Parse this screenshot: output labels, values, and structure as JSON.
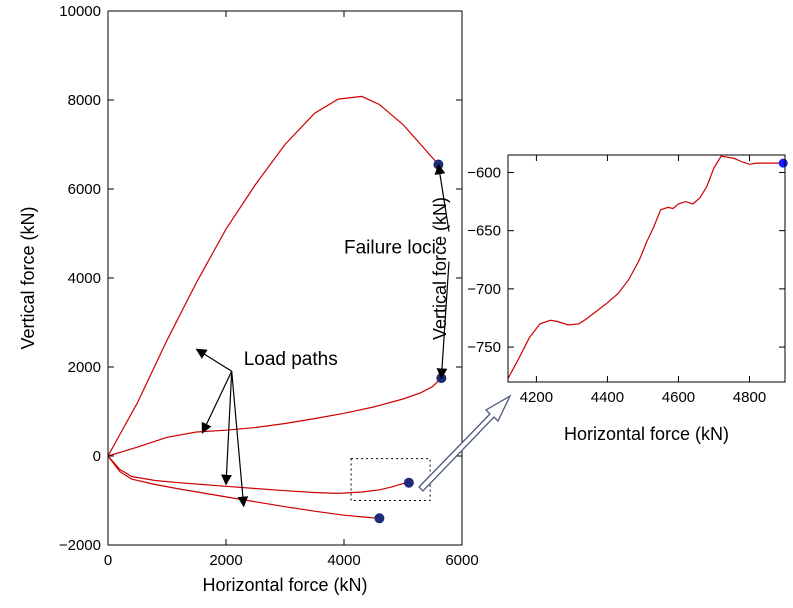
{
  "colors": {
    "line": "#cc0000",
    "marker_main": "#1f2a7a",
    "marker_zoom": "#1a1aff",
    "axis": "#000000"
  },
  "chart_data": [
    {
      "type": "line",
      "xlabel": "Horizontal force (kN)",
      "ylabel": "Vertical force (kN)",
      "xlim": [
        0,
        6000
      ],
      "ylim": [
        -2000,
        10000
      ],
      "xticks": [
        0,
        2000,
        4000,
        6000
      ],
      "yticks": [
        -2000,
        0,
        2000,
        4000,
        6000,
        8000,
        10000
      ],
      "x_tick_labels": [
        "0",
        "2000",
        "4000",
        "6000"
      ],
      "y_tick_labels": [
        "−2000",
        "0",
        "2000",
        "4000",
        "6000",
        "8000",
        "10000"
      ],
      "grid": false,
      "series": [
        {
          "x": [
            0,
            500,
            1000,
            1500,
            2000,
            2500,
            3000,
            3500,
            3900,
            4300,
            4600,
            5000,
            5300,
            5600
          ],
          "y": [
            0,
            1200,
            2600,
            3900,
            5100,
            6100,
            7000,
            7700,
            8020,
            8080,
            7900,
            7450,
            7000,
            6550
          ]
        },
        {
          "x": [
            0,
            500,
            1000,
            1500,
            2000,
            2500,
            3000,
            3500,
            4000,
            4500,
            5000,
            5300,
            5500,
            5650
          ],
          "y": [
            0,
            200,
            420,
            540,
            580,
            640,
            730,
            840,
            960,
            1100,
            1280,
            1420,
            1560,
            1750
          ]
        },
        {
          "x": [
            0,
            200,
            400,
            800,
            1200,
            1600,
            2000,
            2500,
            3000,
            3500,
            3900,
            4300,
            4600,
            4800,
            5000,
            5100
          ],
          "y": [
            0,
            -300,
            -460,
            -550,
            -600,
            -640,
            -680,
            -730,
            -780,
            -820,
            -840,
            -810,
            -760,
            -700,
            -620,
            -600
          ]
        },
        {
          "x": [
            0,
            200,
            400,
            800,
            1200,
            1600,
            2000,
            2500,
            3000,
            3500,
            4000,
            4400,
            4600
          ],
          "y": [
            0,
            -350,
            -520,
            -640,
            -740,
            -830,
            -920,
            -1030,
            -1140,
            -1240,
            -1330,
            -1380,
            -1400
          ]
        }
      ],
      "markers": [
        {
          "x": 5600,
          "y": 6550
        },
        {
          "x": 5650,
          "y": 1750
        },
        {
          "x": 5100,
          "y": -600
        },
        {
          "x": 4600,
          "y": -1400
        }
      ],
      "annotations": [
        {
          "text": "Failure loci",
          "x": 4000,
          "y": 4550,
          "arrows_to": [
            [
              5600,
              6550
            ],
            [
              5650,
              1750
            ]
          ]
        },
        {
          "text": "Load paths",
          "x": 2300,
          "y": 2040,
          "arrows_to": [
            [
              1500,
              2400
            ],
            [
              1600,
              520
            ],
            [
              2000,
              -640
            ],
            [
              2300,
              -1130
            ]
          ]
        }
      ]
    },
    {
      "type": "line",
      "xlabel": "Horizontal force (kN)",
      "ylabel": "Vertical force (kN)",
      "xlim": [
        4120,
        4900
      ],
      "ylim": [
        -780,
        -585
      ],
      "xticks": [
        4200,
        4400,
        4600,
        4800
      ],
      "yticks": [
        -750,
        -700,
        -650,
        -600
      ],
      "x_tick_labels": [
        "4200",
        "4400",
        "4600",
        "4800"
      ],
      "y_tick_labels": [
        "−750",
        "−700",
        "−650",
        "−600"
      ],
      "grid": false,
      "series": [
        {
          "x": [
            4120,
            4150,
            4180,
            4210,
            4240,
            4260,
            4290,
            4320,
            4340,
            4370,
            4400,
            4430,
            4460,
            4490,
            4510,
            4530,
            4550,
            4570,
            4585,
            4600,
            4620,
            4640,
            4660,
            4680,
            4700,
            4720,
            4740,
            4757,
            4780,
            4800,
            4820,
            4840,
            4860,
            4880,
            4895
          ],
          "y": [
            -777,
            -760,
            -742,
            -730,
            -727,
            -728,
            -731,
            -730,
            -726,
            -719,
            -712,
            -704,
            -692,
            -675,
            -660,
            -647,
            -632,
            -630,
            -631,
            -627,
            -625,
            -627,
            -622,
            -612,
            -596,
            -586,
            -587,
            -588,
            -591,
            -593,
            -592,
            -592,
            -592,
            -592,
            -592
          ]
        }
      ],
      "markers": [
        {
          "x": 4895,
          "y": -592
        }
      ]
    }
  ]
}
